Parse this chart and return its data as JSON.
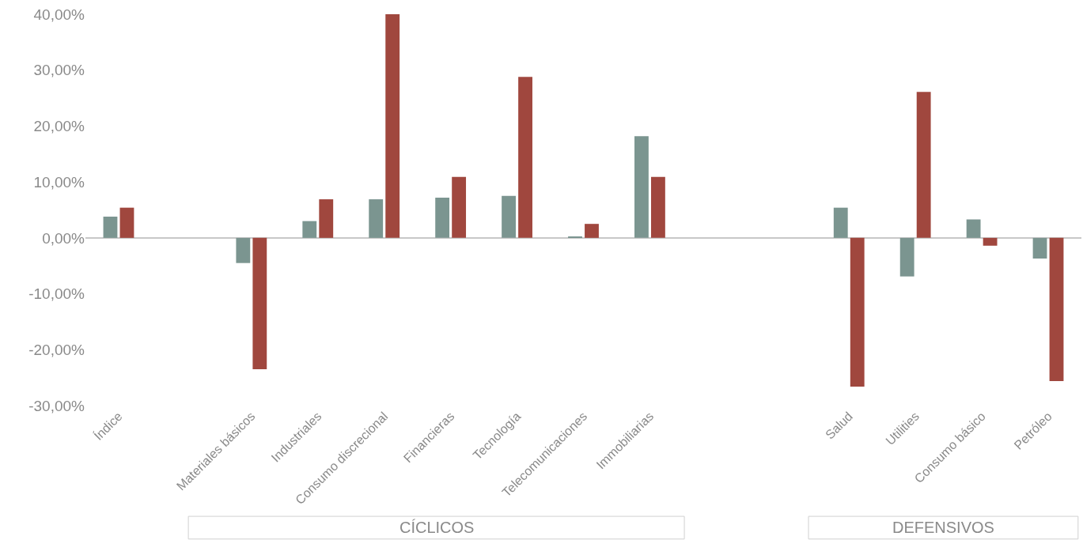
{
  "chart_data": {
    "type": "bar",
    "categories": [
      "Índice",
      null,
      "Materiales básicos",
      "Industriales",
      "Consumo discrecional",
      "Financieras",
      "Tecnología",
      "Telecomunicaciones",
      "Immobiliarias",
      null,
      null,
      "Salud",
      "Utilities",
      "Consumo básico",
      "Petróleo"
    ],
    "series": [
      {
        "color": "#7b9590",
        "values": [
          3.8,
          null,
          -4.5,
          3.0,
          6.9,
          7.2,
          7.5,
          0.2,
          18.2,
          null,
          null,
          5.4,
          -6.9,
          3.3,
          -3.7
        ]
      },
      {
        "color": "#a0473e",
        "values": [
          5.4,
          null,
          -23.5,
          6.9,
          40.0,
          10.9,
          28.8,
          2.5,
          10.9,
          null,
          null,
          -26.6,
          26.1,
          -1.4,
          -25.6
        ]
      }
    ],
    "ylim": [
      -30,
      40
    ],
    "yticks": [
      {
        "value": -30,
        "label": "-30,00%"
      },
      {
        "value": -20,
        "label": "-20,00%"
      },
      {
        "value": -10,
        "label": "-10,00%"
      },
      {
        "value": 0,
        "label": "0,00%"
      },
      {
        "value": 10,
        "label": "10,00%"
      },
      {
        "value": 20,
        "label": "20,00%"
      },
      {
        "value": 30,
        "label": "30,00%"
      },
      {
        "value": 40,
        "label": "40,00%"
      }
    ],
    "legend": false,
    "annotations": [
      "CÍCLICOS",
      "DEFENSIVOS"
    ]
  }
}
